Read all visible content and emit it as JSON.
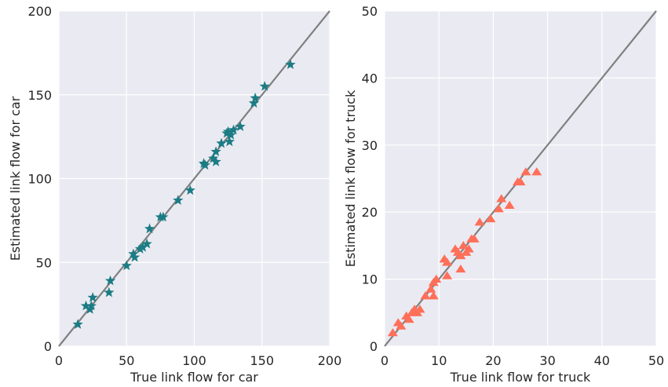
{
  "chart_data": [
    {
      "type": "scatter",
      "xlabel": "True link flow for car",
      "ylabel": "Estimated link flow for car",
      "xlim": [
        0,
        200
      ],
      "ylim": [
        0,
        200
      ],
      "xticks": [
        0,
        50,
        100,
        150,
        200
      ],
      "yticks": [
        0,
        50,
        100,
        150,
        200
      ],
      "grid": true,
      "reference_line": "y = x",
      "line_color": "#808080",
      "marker": "star",
      "color": "#1b7c84",
      "points": [
        [
          14,
          13
        ],
        [
          20,
          24
        ],
        [
          23,
          22
        ],
        [
          24,
          24
        ],
        [
          25,
          29
        ],
        [
          37,
          32
        ],
        [
          38,
          39
        ],
        [
          50,
          48
        ],
        [
          55,
          55
        ],
        [
          56,
          53
        ],
        [
          60,
          58
        ],
        [
          62,
          59
        ],
        [
          65,
          61
        ],
        [
          67,
          70
        ],
        [
          75,
          77
        ],
        [
          77,
          77
        ],
        [
          88,
          87
        ],
        [
          97,
          93
        ],
        [
          107,
          109
        ],
        [
          108,
          108
        ],
        [
          114,
          112
        ],
        [
          116,
          110
        ],
        [
          116,
          116
        ],
        [
          120,
          121
        ],
        [
          124,
          127
        ],
        [
          125,
          128
        ],
        [
          126,
          122
        ],
        [
          127,
          126
        ],
        [
          129,
          129
        ],
        [
          134,
          131
        ],
        [
          144,
          145
        ],
        [
          145,
          148
        ],
        [
          152,
          155
        ],
        [
          171,
          168
        ]
      ]
    },
    {
      "type": "scatter",
      "xlabel": "True link flow for truck",
      "ylabel": "Estimated link flow for truck",
      "xlim": [
        0,
        50
      ],
      "ylim": [
        0,
        50
      ],
      "xticks": [
        0,
        10,
        20,
        30,
        40,
        50
      ],
      "yticks": [
        0,
        10,
        20,
        30,
        40,
        50
      ],
      "grid": true,
      "reference_line": "y = x",
      "line_color": "#808080",
      "marker": "triangle",
      "color": "#ff6f59",
      "points": [
        [
          1.5,
          2
        ],
        [
          2.5,
          3.5
        ],
        [
          3,
          3
        ],
        [
          4,
          4.5
        ],
        [
          4.5,
          4
        ],
        [
          5,
          5
        ],
        [
          5.5,
          5.5
        ],
        [
          6,
          5
        ],
        [
          6.5,
          5.5
        ],
        [
          7.5,
          7.5
        ],
        [
          8.5,
          8.5
        ],
        [
          9,
          7.5
        ],
        [
          9,
          9.5
        ],
        [
          9.5,
          10
        ],
        [
          11,
          13
        ],
        [
          11.5,
          10.5
        ],
        [
          11.5,
          12.5
        ],
        [
          13,
          14.5
        ],
        [
          13.5,
          14
        ],
        [
          14,
          11.5
        ],
        [
          14,
          13.5
        ],
        [
          14.5,
          15
        ],
        [
          15,
          14
        ],
        [
          15.5,
          14.5
        ],
        [
          16,
          16
        ],
        [
          16.5,
          16
        ],
        [
          17.5,
          18.5
        ],
        [
          19.5,
          19
        ],
        [
          21,
          20.5
        ],
        [
          21.5,
          22
        ],
        [
          23,
          21
        ],
        [
          24.5,
          24.5
        ],
        [
          25,
          24.5
        ],
        [
          26,
          26
        ],
        [
          28,
          26
        ]
      ]
    }
  ]
}
